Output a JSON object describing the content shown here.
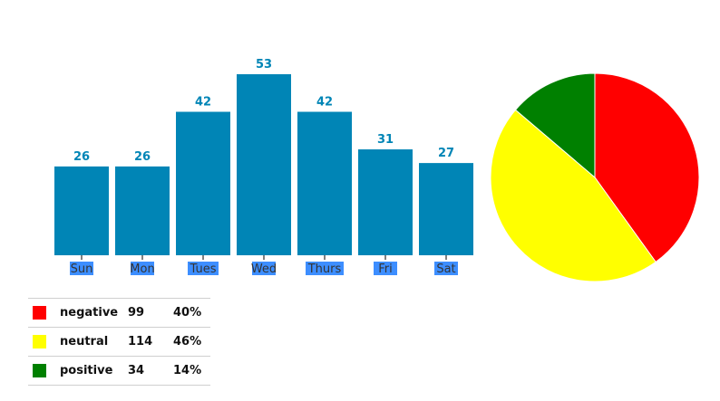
{
  "chart_data": [
    {
      "type": "bar",
      "categories": [
        "Sun",
        "Mon",
        "Tues",
        "Wed",
        "Thurs",
        "Fri",
        "Sat"
      ],
      "values": [
        26,
        26,
        42,
        53,
        42,
        31,
        27
      ],
      "bar_color": "#0085b6",
      "value_label_color": "#0085b6",
      "tick_highlight_color": "#3d8eff",
      "title": "",
      "xlabel": "",
      "ylabel": "",
      "ylim": [
        0,
        53
      ],
      "grid": false
    },
    {
      "type": "pie",
      "categories": [
        "negative",
        "neutral",
        "positive"
      ],
      "values": [
        99,
        114,
        34
      ],
      "percents": [
        "40%",
        "46%",
        "14%"
      ],
      "colors": [
        "#ff0000",
        "#ffff00",
        "#008000"
      ],
      "legend_placement": "bottom-left"
    }
  ]
}
